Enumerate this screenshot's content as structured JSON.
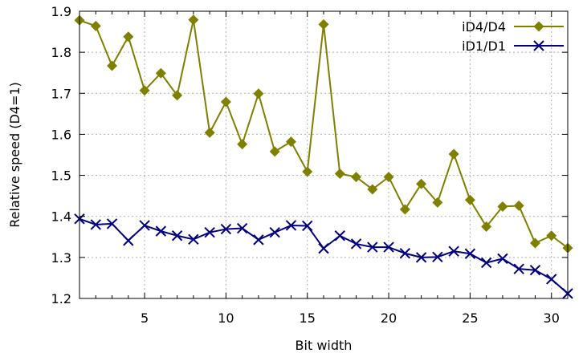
{
  "chart_data": {
    "type": "line",
    "title": "",
    "xlabel": "Bit width",
    "ylabel": "Relative speed (D4=1)",
    "xlim": [
      1,
      31
    ],
    "ylim": [
      1.2,
      1.9
    ],
    "xticks": [
      5,
      10,
      15,
      20,
      25,
      30
    ],
    "yticks": [
      1.2,
      1.3,
      1.4,
      1.5,
      1.6,
      1.7,
      1.8,
      1.9
    ],
    "ytick_labels": [
      "1.2",
      "1.3",
      "1.4",
      "1.5",
      "1.6",
      "1.7",
      "1.8",
      "1.9"
    ],
    "grid": true,
    "legend_position": "top-right",
    "x": [
      1,
      2,
      3,
      4,
      5,
      6,
      7,
      8,
      9,
      10,
      11,
      12,
      13,
      14,
      15,
      16,
      17,
      18,
      19,
      20,
      21,
      22,
      23,
      24,
      25,
      26,
      27,
      28,
      29,
      30,
      31
    ],
    "series": [
      {
        "name": "iD4/D4",
        "color": "#808000",
        "marker": "diamond",
        "values": [
          1.878,
          1.864,
          1.767,
          1.838,
          1.707,
          1.749,
          1.695,
          1.879,
          1.604,
          1.679,
          1.576,
          1.699,
          1.558,
          1.582,
          1.509,
          1.868,
          1.504,
          1.496,
          1.466,
          1.496,
          1.417,
          1.479,
          1.434,
          1.552,
          1.44,
          1.375,
          1.424,
          1.426,
          1.335,
          1.353,
          1.323
        ]
      },
      {
        "name": "iD1/D1",
        "color": "#000080",
        "marker": "x",
        "values": [
          1.394,
          1.38,
          1.382,
          1.341,
          1.378,
          1.364,
          1.353,
          1.344,
          1.361,
          1.369,
          1.371,
          1.343,
          1.361,
          1.378,
          1.377,
          1.322,
          1.353,
          1.333,
          1.325,
          1.325,
          1.31,
          1.3,
          1.301,
          1.315,
          1.309,
          1.287,
          1.297,
          1.272,
          1.269,
          1.247,
          1.212
        ]
      }
    ]
  }
}
